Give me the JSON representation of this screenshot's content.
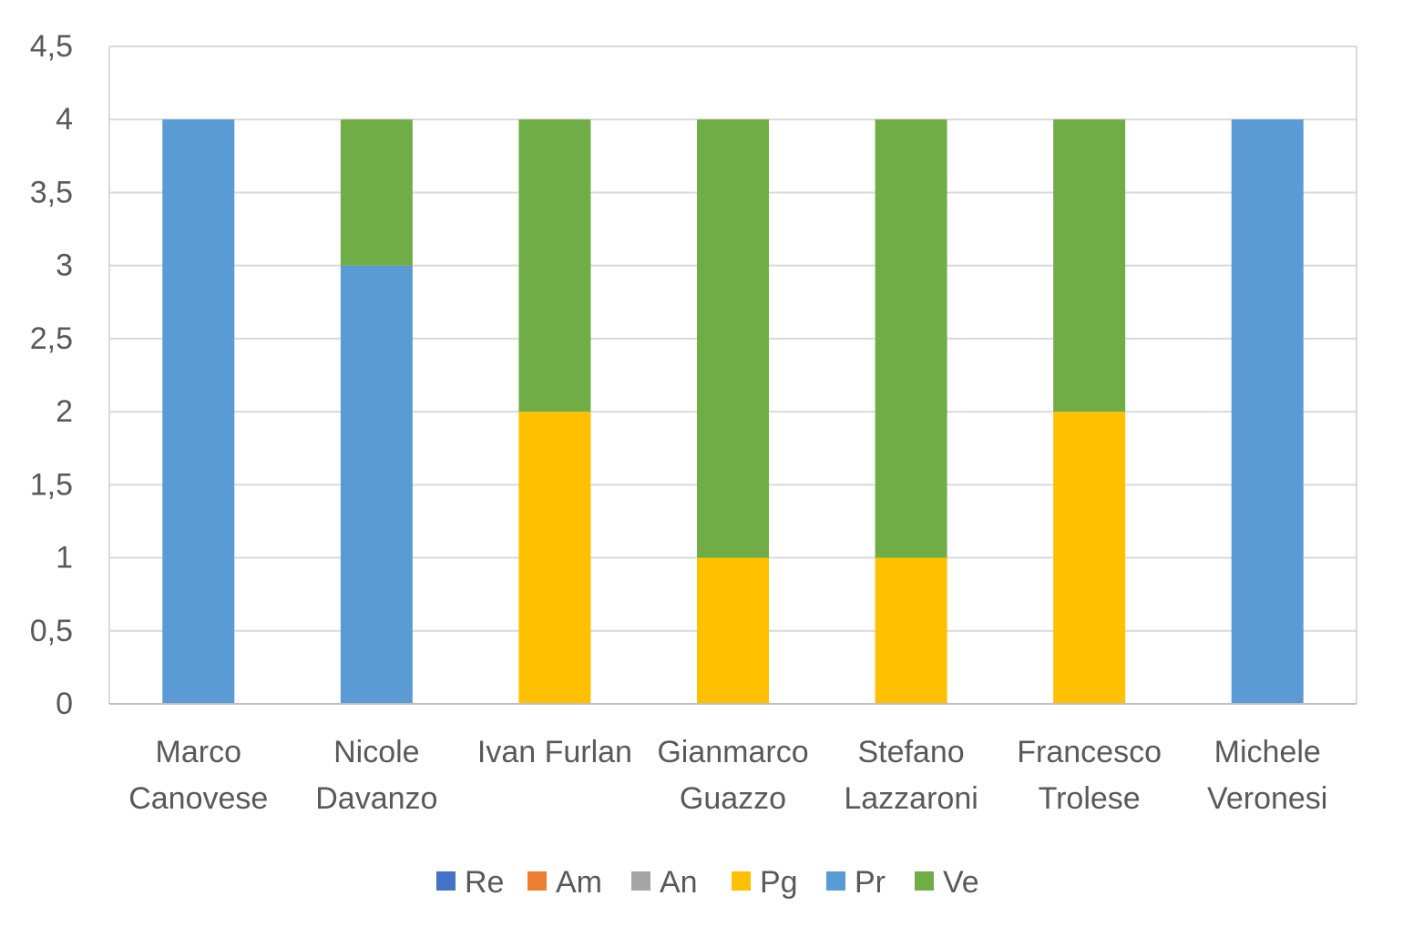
{
  "chart_data": {
    "type": "bar",
    "stacked": true,
    "title": "",
    "xlabel": "",
    "ylabel": "",
    "ylim": [
      0,
      4.5
    ],
    "y_ticks": [
      "0",
      "0,5",
      "1",
      "1,5",
      "2",
      "2,5",
      "3",
      "3,5",
      "4",
      "4,5"
    ],
    "grid": true,
    "legend_position": "bottom",
    "categories": [
      [
        "Marco",
        "Canovese"
      ],
      [
        "Nicole",
        "Davanzo"
      ],
      [
        "Ivan Furlan"
      ],
      [
        "Gianmarco",
        "Guazzo"
      ],
      [
        "Stefano",
        "Lazzaroni"
      ],
      [
        "Francesco",
        "Trolese"
      ],
      [
        "Michele",
        "Veronesi"
      ]
    ],
    "series": [
      {
        "name": "Re",
        "color": "#4472C4",
        "values": [
          0,
          0,
          0,
          0,
          0,
          0,
          0
        ]
      },
      {
        "name": "Am",
        "color": "#ED7D31",
        "values": [
          0,
          0,
          0,
          0,
          0,
          0,
          0
        ]
      },
      {
        "name": "An",
        "color": "#A5A5A5",
        "values": [
          0,
          0,
          0,
          0,
          0,
          0,
          0
        ]
      },
      {
        "name": "Pg",
        "color": "#FFC000",
        "values": [
          0,
          0,
          2,
          1,
          1,
          2,
          0
        ]
      },
      {
        "name": "Pr",
        "color": "#5B9BD5",
        "values": [
          4,
          3,
          0,
          0,
          0,
          0,
          4
        ]
      },
      {
        "name": "Ve",
        "color": "#70AD47",
        "values": [
          0,
          1,
          2,
          3,
          3,
          2,
          0
        ]
      }
    ]
  }
}
